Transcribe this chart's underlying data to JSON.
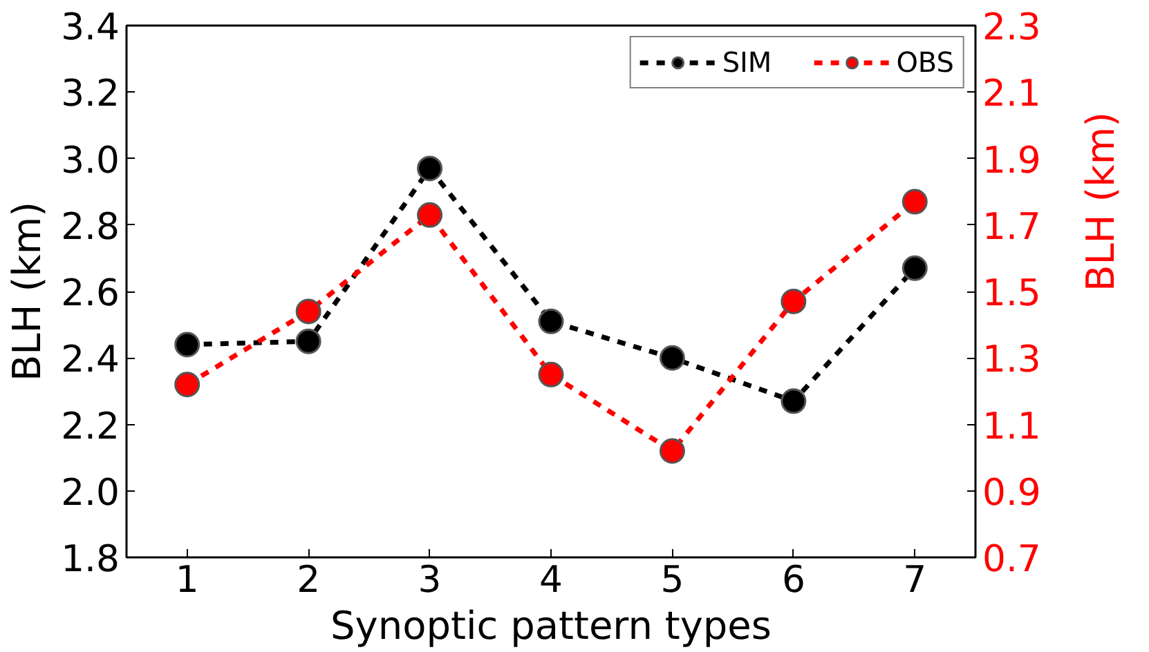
{
  "chart_data": {
    "type": "line",
    "xlabel": "Synoptic pattern types",
    "ylabel": "BLH (km)",
    "y2label": "BLH (km)",
    "x": [
      1,
      2,
      3,
      4,
      5,
      6,
      7
    ],
    "series": [
      {
        "name": "SIM",
        "color": "#000000",
        "values": [
          2.44,
          2.45,
          2.97,
          2.51,
          2.4,
          2.27,
          2.67
        ]
      },
      {
        "name": "OBS",
        "color": "#ff0000",
        "axis": "y2",
        "values": [
          1.22,
          1.44,
          1.73,
          1.25,
          1.02,
          1.47,
          1.77
        ]
      }
    ],
    "xlim": [
      0.5,
      7.5
    ],
    "xticks": [
      1,
      2,
      3,
      4,
      5,
      6,
      7
    ],
    "ylim": [
      1.8,
      3.4
    ],
    "yticks": [
      1.8,
      {
        "value": 2,
        "label": "2.0"
      },
      2.2,
      2.4,
      2.6,
      2.8,
      {
        "value": 3,
        "label": "3.0"
      },
      3.2,
      3.4
    ],
    "y2lim": [
      0.7,
      2.3
    ],
    "y2ticks": [
      0.7,
      0.9,
      1.1,
      1.3,
      1.5,
      1.7,
      1.9,
      2.1,
      2.3
    ],
    "legend": "top right",
    "grid": false,
    "marker": "circle",
    "line_style": "dashed"
  }
}
